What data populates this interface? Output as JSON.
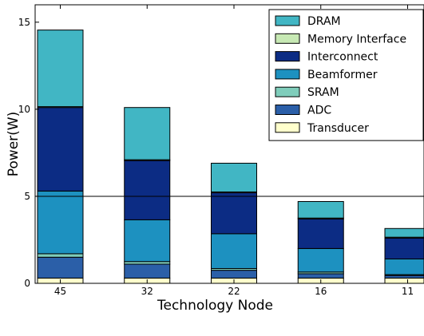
{
  "chart_data": {
    "type": "bar",
    "stacked": true,
    "xlabel": "Technology Node",
    "ylabel": "Power(W)",
    "ylim": [
      0,
      16
    ],
    "yticks": [
      0,
      5,
      10,
      15
    ],
    "categories": [
      "45",
      "32",
      "22",
      "16",
      "11"
    ],
    "reference_line": 5,
    "grid": false,
    "legend_position": "top-right",
    "series": [
      {
        "name": "Transducer",
        "color": "#ffffcc",
        "values": [
          0.3,
          0.3,
          0.3,
          0.3,
          0.3
        ]
      },
      {
        "name": "ADC",
        "color": "#2b5fa8",
        "values": [
          1.2,
          0.8,
          0.45,
          0.25,
          0.15
        ]
      },
      {
        "name": "SRAM",
        "color": "#7fcdbb",
        "values": [
          0.2,
          0.15,
          0.1,
          0.1,
          0.05
        ]
      },
      {
        "name": "Beamformer",
        "color": "#1d91c0",
        "values": [
          3.6,
          2.4,
          2.0,
          1.35,
          0.9
        ]
      },
      {
        "name": "Interconnect",
        "color": "#0c2c84",
        "values": [
          4.8,
          3.4,
          2.35,
          1.7,
          1.2
        ]
      },
      {
        "name": "Memory Interface",
        "color": "#c7e9b4",
        "values": [
          0.05,
          0.05,
          0.05,
          0.05,
          0.05
        ]
      },
      {
        "name": "DRAM",
        "color": "#41b6c4",
        "values": [
          4.4,
          3.0,
          1.65,
          0.95,
          0.5
        ]
      }
    ]
  }
}
